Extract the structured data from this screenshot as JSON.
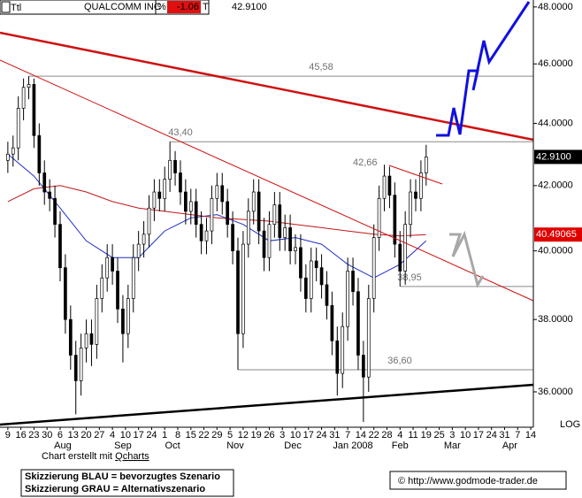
{
  "header": {
    "symbol": "Ttl",
    "name": "QUALCOMM INC",
    "pct_sign": "%",
    "change": "-1.06",
    "t": "T",
    "last": "42.9100"
  },
  "chart_data": {
    "type": "candlestick",
    "log_scale": true,
    "scale_label": "LOG",
    "ylim": [
      35.06,
      48.25
    ],
    "yticks": [
      {
        "value": 48,
        "label": "48.0000"
      },
      {
        "value": 46,
        "label": "46.0000"
      },
      {
        "value": 44,
        "label": "44.0000"
      },
      {
        "value": 42,
        "label": "42.0000"
      },
      {
        "value": 40,
        "label": "40.0000"
      },
      {
        "value": 38,
        "label": "38.0000"
      },
      {
        "value": 36,
        "label": "36.0000"
      }
    ],
    "xlim": [
      -3,
      201
    ],
    "xticks": [
      {
        "value": 0,
        "label": "9"
      },
      {
        "value": 5,
        "label": "16"
      },
      {
        "value": 10,
        "label": "23"
      },
      {
        "value": 15,
        "label": "30"
      },
      {
        "value": 20,
        "label": "6"
      },
      {
        "value": 25,
        "label": "13"
      },
      {
        "value": 30,
        "label": "20"
      },
      {
        "value": 35,
        "label": "27"
      },
      {
        "value": 40,
        "label": "4"
      },
      {
        "value": 45,
        "label": "10"
      },
      {
        "value": 50,
        "label": "17"
      },
      {
        "value": 55,
        "label": "24"
      },
      {
        "value": 60,
        "label": "1"
      },
      {
        "value": 65,
        "label": "8"
      },
      {
        "value": 70,
        "label": "15"
      },
      {
        "value": 75,
        "label": "22"
      },
      {
        "value": 80,
        "label": "29"
      },
      {
        "value": 85,
        "label": "5"
      },
      {
        "value": 90,
        "label": "12"
      },
      {
        "value": 95,
        "label": "19"
      },
      {
        "value": 100,
        "label": "26"
      },
      {
        "value": 105,
        "label": "3"
      },
      {
        "value": 110,
        "label": "10"
      },
      {
        "value": 115,
        "label": "17"
      },
      {
        "value": 120,
        "label": "24"
      },
      {
        "value": 125,
        "label": "31"
      },
      {
        "value": 130,
        "label": "7"
      },
      {
        "value": 135,
        "label": "14"
      },
      {
        "value": 140,
        "label": "22"
      },
      {
        "value": 145,
        "label": "28"
      },
      {
        "value": 150,
        "label": "4"
      },
      {
        "value": 155,
        "label": "11"
      },
      {
        "value": 160,
        "label": "19"
      },
      {
        "value": 165,
        "label": "25"
      },
      {
        "value": 170,
        "label": "3"
      },
      {
        "value": 175,
        "label": "10"
      },
      {
        "value": 180,
        "label": "17"
      },
      {
        "value": 185,
        "label": "24"
      },
      {
        "value": 190,
        "label": "31"
      },
      {
        "value": 195,
        "label": "7"
      },
      {
        "value": 200,
        "label": "14"
      }
    ],
    "month_labels": [
      {
        "value": 21,
        "label": "Aug"
      },
      {
        "value": 44,
        "label": "Sep"
      },
      {
        "value": 63,
        "label": "Oct"
      },
      {
        "value": 87,
        "label": "Nov"
      },
      {
        "value": 109,
        "label": "Dec"
      },
      {
        "value": 132,
        "label": "Jan 2008"
      },
      {
        "value": 150,
        "label": "Feb"
      },
      {
        "value": 170,
        "label": "Mar"
      },
      {
        "value": 192,
        "label": "Apr"
      }
    ],
    "x": [
      0,
      2,
      4,
      6,
      8,
      10,
      12,
      14,
      16,
      18,
      20,
      22,
      24,
      26,
      28,
      30,
      32,
      34,
      36,
      38,
      40,
      42,
      44,
      46,
      48,
      50,
      52,
      54,
      56,
      58,
      60,
      62,
      64,
      66,
      68,
      70,
      72,
      74,
      76,
      78,
      80,
      82,
      84,
      86,
      88,
      90,
      92,
      94,
      96,
      98,
      100,
      102,
      104,
      106,
      108,
      110,
      112,
      114,
      116,
      118,
      120,
      122,
      124,
      126,
      128,
      130,
      132,
      134,
      136,
      138,
      140,
      142,
      144,
      146,
      148,
      150,
      152,
      154,
      156,
      158,
      160
    ],
    "open": [
      42.8,
      43.0,
      43.2,
      44.5,
      45.2,
      45.3,
      43.6,
      42.4,
      41.8,
      41.6,
      40.8,
      39.5,
      38.0,
      37.0,
      36.3,
      37.2,
      37.6,
      37.3,
      38.6,
      39.2,
      39.8,
      39.4,
      38.3,
      37.6,
      38.6,
      39.8,
      40.2,
      40.5,
      41.3,
      41.8,
      41.6,
      42.2,
      42.8,
      42.4,
      41.8,
      41.2,
      41.5,
      40.8,
      40.3,
      40.6,
      41.6,
      42.0,
      41.5,
      40.8,
      40.0,
      37.6,
      40.2,
      41.2,
      41.8,
      40.6,
      39.8,
      40.8,
      41.4,
      40.4,
      40.7,
      40.0,
      40.1,
      39.2,
      38.6,
      39.7,
      39.5,
      39.0,
      38.4,
      37.4,
      36.5,
      37.8,
      39.4,
      38.8,
      37.0,
      36.4,
      38.6,
      40.4,
      41.6,
      42.3,
      41.7,
      40.2,
      39.4,
      40.8,
      41.8,
      41.6,
      42.4
    ],
    "high": [
      43.4,
      43.6,
      44.9,
      45.5,
      45.58,
      45.5,
      44.0,
      42.8,
      42.2,
      42.0,
      41.2,
      39.9,
      38.4,
      37.4,
      37.6,
      38.0,
      38.0,
      39.0,
      39.6,
      40.2,
      40.2,
      39.8,
      38.7,
      39.0,
      40.2,
      40.6,
      40.9,
      41.7,
      42.2,
      42.2,
      42.6,
      43.4,
      43.1,
      42.8,
      42.2,
      41.9,
      41.9,
      41.2,
      41.0,
      42.0,
      42.4,
      42.4,
      41.9,
      41.2,
      40.4,
      40.6,
      41.6,
      42.2,
      42.2,
      41.0,
      41.2,
      41.8,
      41.8,
      41.1,
      41.1,
      40.5,
      40.5,
      39.6,
      40.1,
      40.1,
      39.9,
      39.4,
      38.8,
      37.8,
      38.2,
      39.8,
      39.8,
      39.2,
      37.4,
      39.0,
      40.8,
      42.0,
      42.66,
      42.6,
      42.1,
      40.6,
      41.2,
      42.2,
      42.2,
      42.8,
      43.3
    ],
    "low": [
      42.4,
      42.6,
      42.8,
      44.1,
      44.8,
      43.2,
      42.0,
      41.4,
      41.2,
      40.4,
      39.1,
      37.6,
      36.6,
      35.4,
      35.9,
      36.8,
      36.7,
      36.9,
      38.2,
      38.8,
      39.0,
      37.9,
      36.8,
      37.2,
      38.2,
      39.4,
      39.8,
      40.1,
      40.9,
      41.2,
      41.2,
      41.8,
      42.0,
      41.4,
      40.8,
      40.8,
      40.4,
      39.9,
      39.9,
      40.2,
      41.2,
      41.1,
      40.4,
      39.6,
      36.6,
      37.2,
      39.8,
      40.8,
      40.2,
      39.4,
      39.4,
      40.4,
      40.0,
      40.0,
      39.6,
      39.6,
      38.8,
      38.2,
      38.2,
      39.1,
      38.6,
      38.0,
      37.0,
      35.9,
      36.1,
      37.4,
      38.4,
      36.6,
      35.2,
      36.0,
      38.2,
      40.0,
      41.2,
      41.3,
      39.8,
      38.95,
      39.0,
      40.4,
      41.2,
      41.2,
      42.0
    ],
    "close": [
      43.0,
      43.2,
      44.5,
      45.2,
      45.3,
      43.6,
      42.4,
      41.8,
      41.6,
      40.8,
      39.5,
      38.0,
      37.0,
      36.3,
      37.2,
      37.6,
      37.3,
      38.6,
      39.2,
      39.8,
      39.4,
      38.3,
      37.6,
      38.6,
      39.8,
      40.2,
      40.5,
      41.3,
      41.8,
      41.6,
      42.2,
      42.8,
      42.4,
      41.8,
      41.2,
      41.5,
      40.8,
      40.3,
      40.6,
      41.6,
      42.0,
      41.5,
      40.8,
      40.0,
      37.6,
      40.2,
      41.2,
      41.8,
      40.6,
      39.8,
      40.8,
      41.4,
      40.4,
      40.7,
      40.0,
      40.1,
      39.2,
      38.6,
      39.7,
      39.5,
      39.0,
      38.4,
      37.4,
      36.5,
      37.8,
      39.4,
      38.8,
      37.0,
      36.4,
      38.6,
      40.4,
      41.6,
      42.3,
      41.7,
      40.2,
      39.4,
      40.8,
      41.8,
      41.6,
      42.4,
      42.91
    ],
    "series": [
      {
        "color": "#1f2fc8",
        "x": [
          0,
          10,
          20,
          30,
          40,
          50,
          60,
          70,
          80,
          90,
          100,
          110,
          120,
          130,
          140,
          150,
          160
        ],
        "values": [
          43.0,
          42.3,
          41.3,
          40.3,
          39.8,
          39.8,
          40.6,
          41.0,
          41.1,
          40.8,
          40.3,
          40.4,
          40.2,
          39.6,
          39.2,
          39.6,
          40.3
        ]
      },
      {
        "color": "#c01818",
        "x": [
          0,
          10,
          20,
          30,
          40,
          50,
          60,
          70,
          80,
          90,
          100,
          110,
          120,
          130,
          140,
          150,
          160
        ],
        "values": [
          41.5,
          41.9,
          42.0,
          41.8,
          41.5,
          41.3,
          41.2,
          41.1,
          41.0,
          40.95,
          40.9,
          40.8,
          40.7,
          40.6,
          40.5,
          40.45,
          40.49065
        ]
      }
    ],
    "levels": [
      {
        "value": 45.58,
        "label": "45,58",
        "x": 8
      },
      {
        "value": 43.4,
        "label": "43,40",
        "x": 62
      },
      {
        "value": 38.95,
        "label": "38,95",
        "x": 150
      },
      {
        "value": 36.6,
        "label": "36,60",
        "x": 88
      }
    ],
    "point_labels": [
      {
        "value": 42.66,
        "label": "42,66",
        "x": 144
      }
    ],
    "price_tags": [
      {
        "value": 42.91,
        "label": "42.9100",
        "color": "#000000"
      },
      {
        "value": 40.49065,
        "label": "40.49065",
        "color": "#e00000"
      }
    ]
  },
  "footer": {
    "credit_prefix": "Chart erstellt mit",
    "credit_link": "Qcharts",
    "legend": [
      "Skizzierung BLAU = bevorzugtes Szenario",
      "Skizzierung GRAU = Alternativszenario"
    ],
    "copyright": "© http://www.godmode-trader.de"
  }
}
